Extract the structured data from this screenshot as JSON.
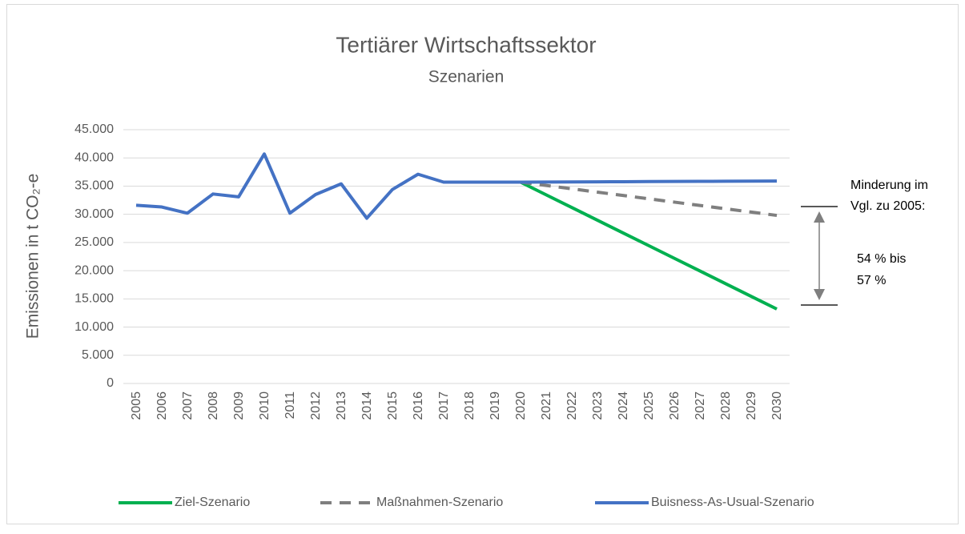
{
  "chart_data": {
    "type": "line",
    "title": "Tertiärer Wirtschaftssektor",
    "subtitle": "Szenarien",
    "y_label": "Emissionen in t CO₂-e",
    "categories": [
      "2005",
      "2006",
      "2007",
      "2008",
      "2009",
      "2010",
      "2011",
      "2012",
      "2013",
      "2014",
      "2015",
      "2016",
      "2017",
      "2018",
      "2019",
      "2020",
      "2021",
      "2022",
      "2023",
      "2024",
      "2025",
      "2026",
      "2027",
      "2028",
      "2029",
      "2030"
    ],
    "series": [
      {
        "name": "Ziel-Szenario",
        "color": "#00b050",
        "dashed": false,
        "values": [
          null,
          null,
          null,
          null,
          null,
          null,
          null,
          null,
          null,
          null,
          null,
          null,
          null,
          null,
          null,
          35700,
          33450,
          31200,
          28950,
          26700,
          24450,
          22200,
          19950,
          17700,
          15450,
          13200
        ]
      },
      {
        "name": "Maßnahmen-Szenario",
        "color": "#7f7f7f",
        "dashed": true,
        "values": [
          null,
          null,
          null,
          null,
          null,
          null,
          null,
          null,
          null,
          null,
          null,
          null,
          null,
          null,
          null,
          35700,
          35110,
          34520,
          33930,
          33340,
          32750,
          32160,
          31570,
          30980,
          30390,
          29800
        ]
      },
      {
        "name": "Buisness-As-Usual-Szenario",
        "color": "#4472c4",
        "dashed": false,
        "values": [
          31600,
          31300,
          30200,
          33600,
          33100,
          40700,
          30200,
          33500,
          35400,
          29300,
          34400,
          37100,
          35700,
          35700,
          35700,
          35700,
          35720,
          35740,
          35760,
          35780,
          35800,
          35820,
          35840,
          35860,
          35880,
          35900
        ]
      }
    ],
    "ylim": [
      0,
      45000
    ],
    "yticks": [
      0,
      {
        "value": 5000,
        "label": "5.000"
      },
      {
        "value": 10000,
        "label": "10.000"
      },
      {
        "value": 15000,
        "label": "15.000"
      },
      {
        "value": 20000,
        "label": "20.000"
      },
      {
        "value": 25000,
        "label": "25.000"
      },
      {
        "value": 30000,
        "label": "30.000"
      },
      {
        "value": 35000,
        "label": "35.000"
      },
      {
        "value": 40000,
        "label": "40.000"
      },
      {
        "value": 45000,
        "label": "45.000"
      }
    ],
    "grid": true,
    "legend": "bottom",
    "annotations": [
      "Minderung im",
      "Vgl. zu 2005:",
      "54 % bis",
      "57 %"
    ]
  }
}
